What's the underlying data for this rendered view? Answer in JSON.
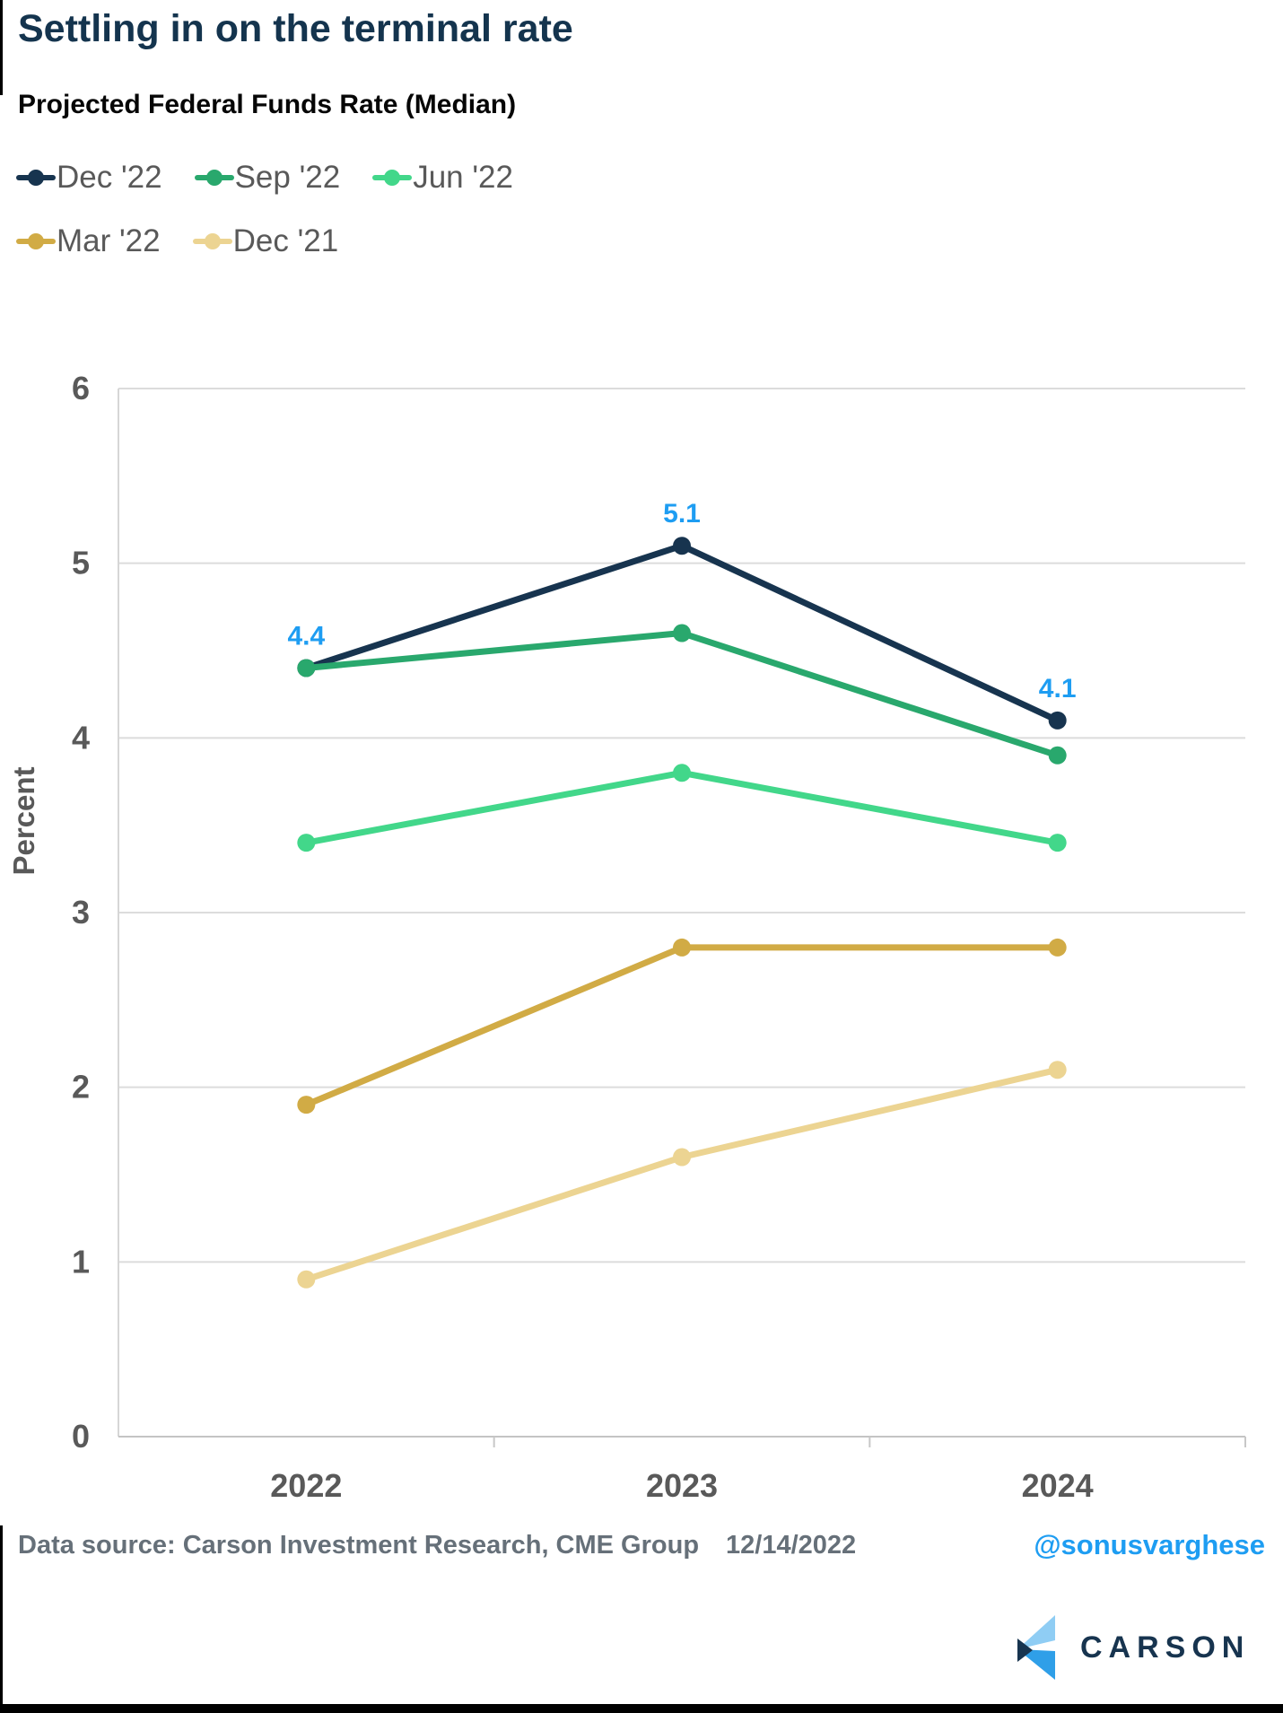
{
  "chart_data": {
    "type": "line",
    "title": "Settling in on the terminal rate",
    "subtitle": "Projected Federal Funds Rate (Median)",
    "ylabel": "Percent",
    "categories": [
      "2022",
      "2023",
      "2024"
    ],
    "series": [
      {
        "name": "Dec '22",
        "color": "#17344f",
        "values": [
          4.4,
          5.1,
          4.1
        ],
        "show_labels": true
      },
      {
        "name": "Sep '22",
        "color": "#29a86d",
        "values": [
          4.4,
          4.6,
          3.9
        ]
      },
      {
        "name": "Jun '22",
        "color": "#42d78a",
        "values": [
          3.4,
          3.8,
          3.4
        ]
      },
      {
        "name": "Mar '22",
        "color": "#d1ab45",
        "values": [
          1.9,
          2.8,
          2.8
        ]
      },
      {
        "name": "Dec '21",
        "color": "#ecd492",
        "values": [
          0.9,
          1.6,
          2.1
        ]
      }
    ],
    "ylim": [
      0,
      6
    ],
    "yticks": [
      0,
      1,
      2,
      3,
      4,
      5,
      6
    ],
    "grid": true,
    "legend_position": "top-left",
    "data_label_color": "#1e9df2"
  },
  "footer": {
    "source": "Data source: Carson Investment Research, CME Group",
    "date": "12/14/2022",
    "handle": "@sonusvarghese",
    "brand": "CARSON"
  },
  "colors": {
    "title": "#14344e",
    "axis_text": "#595959",
    "gridline": "#dcdcdc",
    "footer_text": "#667079",
    "accent_blue": "#1e9df2",
    "brand_navy": "#17344f",
    "brand_light_blue": "#8fcdf4",
    "brand_bright_blue": "#2f9fe8"
  }
}
